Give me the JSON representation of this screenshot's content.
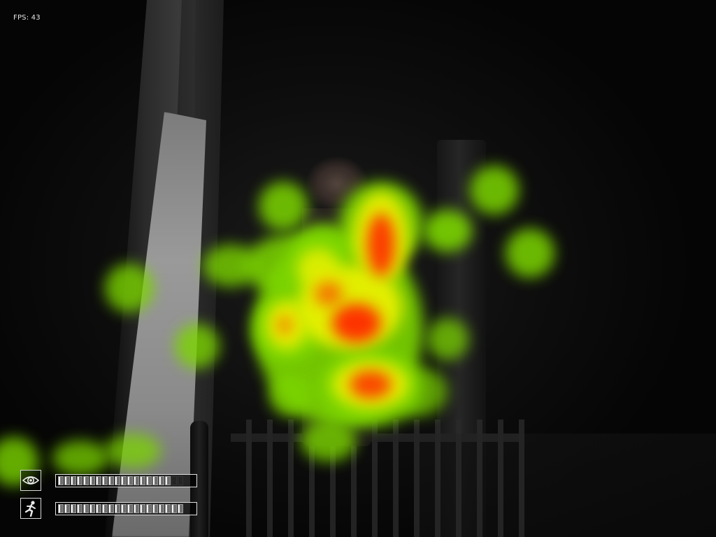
{
  "hud": {
    "fps_text": "FPS: 43",
    "blink_meter": {
      "icon": "eye-icon",
      "fill_fraction": 0.9,
      "segments_total": 20,
      "segments_filled": 18
    },
    "stamina_meter": {
      "icon": "running-man-icon",
      "fill_fraction": 1.0,
      "segments_total": 20,
      "segments_filled": 20
    }
  },
  "heatmap": {
    "colors": {
      "low": "#7cd600",
      "mid": "#e8f000",
      "high": "#ff2a00"
    }
  }
}
